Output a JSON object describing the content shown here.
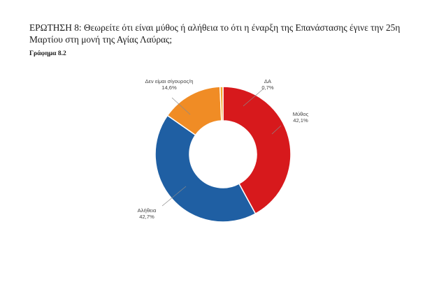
{
  "title": "ΕΡΩΤΗΣΗ 8: Θεωρείτε ότι είναι μύθος ή αλήθεια το ότι η έναρξη της Επανάστασης έγινε την 25η Μαρτίου στη μονή της Αγίας Λαύρας;",
  "subtitle": "Γράφημα 8.2",
  "chart_data": {
    "type": "pie",
    "subtype": "donut",
    "title": "Γράφημα 8.2",
    "categories": [
      "Μύθος",
      "Αλήθεια",
      "Δεν είμαι σίγουρος/η",
      "ΔΑ"
    ],
    "values": [
      42.1,
      42.7,
      14.6,
      0.7
    ],
    "value_labels": [
      "42,1%",
      "42,7%",
      "14,6%",
      "0,7%"
    ],
    "colors": [
      "#d7191c",
      "#1f5fa3",
      "#f08c25",
      "#f2a52d"
    ],
    "start_angle_deg": 0,
    "direction": "clockwise",
    "legend": "none"
  }
}
